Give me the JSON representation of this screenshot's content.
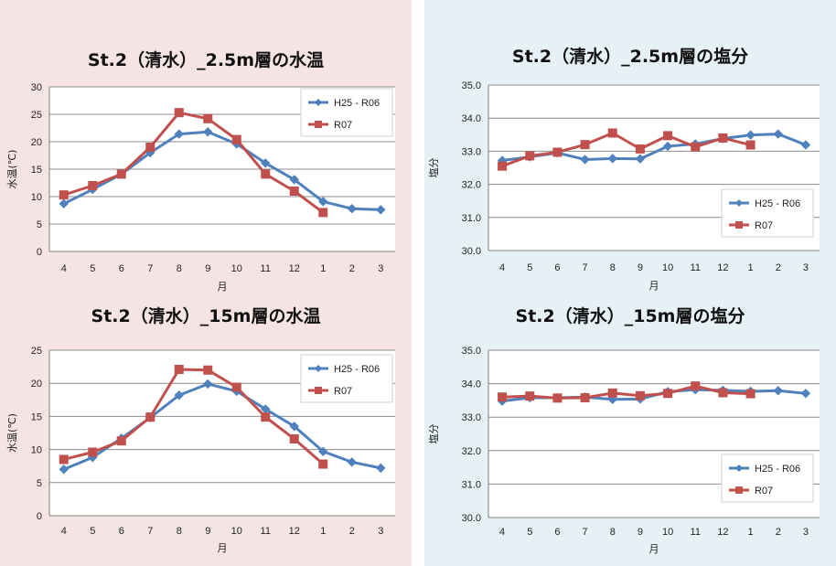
{
  "chart_data": [
    {
      "type": "line",
      "title": "St.2（清水）_2.5m層の水温",
      "xlabel": "月",
      "ylabel": "水温(℃)",
      "categories": [
        "4",
        "5",
        "6",
        "7",
        "8",
        "9",
        "10",
        "11",
        "12",
        "1",
        "2",
        "3"
      ],
      "ylim": [
        0,
        30
      ],
      "yticks": [
        "0",
        "5",
        "10",
        "15",
        "20",
        "25",
        "30"
      ],
      "grid": true,
      "legend": "top-right",
      "series": [
        {
          "name": "H25 - R06",
          "color": "#4f81bd",
          "marker": "diamond",
          "values": [
            8.7,
            11.3,
            14.1,
            18.0,
            21.4,
            21.8,
            19.6,
            16.1,
            13.1,
            9.1,
            7.8,
            7.6
          ]
        },
        {
          "name": "R07",
          "color": "#c0504d",
          "marker": "square",
          "values": [
            10.3,
            12.0,
            14.1,
            19.0,
            25.3,
            24.2,
            20.4,
            14.1,
            11.0,
            7.1,
            null,
            null
          ]
        }
      ]
    },
    {
      "type": "line",
      "title": "St.2（清水）_2.5m層の塩分",
      "xlabel": "月",
      "ylabel": "塩分",
      "categories": [
        "4",
        "5",
        "6",
        "7",
        "8",
        "9",
        "10",
        "11",
        "12",
        "1",
        "2",
        "3"
      ],
      "ylim": [
        30,
        35
      ],
      "yticks": [
        "30.0",
        "31.0",
        "32.0",
        "33.0",
        "34.0",
        "35.0"
      ],
      "grid": true,
      "legend": "bottom-right",
      "series": [
        {
          "name": "H25 - R06",
          "color": "#4f81bd",
          "marker": "diamond",
          "values": [
            32.72,
            32.83,
            32.95,
            32.75,
            32.78,
            32.77,
            33.15,
            33.22,
            33.38,
            33.49,
            33.52,
            33.19
          ]
        },
        {
          "name": "R07",
          "color": "#c0504d",
          "marker": "square",
          "values": [
            32.55,
            32.86,
            32.97,
            33.2,
            33.55,
            33.07,
            33.47,
            33.13,
            33.4,
            33.19,
            null,
            null
          ]
        }
      ]
    },
    {
      "type": "line",
      "title": "St.2（清水）_15m層の水温",
      "xlabel": "月",
      "ylabel": "水温(℃)",
      "categories": [
        "4",
        "5",
        "6",
        "7",
        "8",
        "9",
        "10",
        "11",
        "12",
        "1",
        "2",
        "3"
      ],
      "ylim": [
        0,
        25
      ],
      "yticks": [
        "0",
        "5",
        "10",
        "15",
        "20",
        "25"
      ],
      "grid": true,
      "legend": "top-right",
      "series": [
        {
          "name": "H25 - R06",
          "color": "#4f81bd",
          "marker": "diamond",
          "values": [
            7.0,
            8.8,
            11.7,
            14.8,
            18.2,
            19.9,
            18.8,
            16.1,
            13.5,
            9.7,
            8.1,
            7.2
          ]
        },
        {
          "name": "R07",
          "color": "#c0504d",
          "marker": "square",
          "values": [
            8.5,
            9.6,
            11.3,
            14.9,
            22.1,
            22.0,
            19.4,
            14.9,
            11.6,
            7.8,
            null,
            null
          ]
        }
      ]
    },
    {
      "type": "line",
      "title": "St.2（清水）_15m層の塩分",
      "xlabel": "月",
      "ylabel": "塩分",
      "categories": [
        "4",
        "5",
        "6",
        "7",
        "8",
        "9",
        "10",
        "11",
        "12",
        "1",
        "2",
        "3"
      ],
      "ylim": [
        30,
        35
      ],
      "yticks": [
        "30.0",
        "31.0",
        "32.0",
        "33.0",
        "34.0",
        "35.0"
      ],
      "grid": true,
      "legend": "bottom-right",
      "series": [
        {
          "name": "H25 - R06",
          "color": "#4f81bd",
          "marker": "diamond",
          "values": [
            33.48,
            33.58,
            33.58,
            33.6,
            33.53,
            33.54,
            33.76,
            33.82,
            33.8,
            33.77,
            33.79,
            33.71
          ]
        },
        {
          "name": "R07",
          "color": "#c0504d",
          "marker": "square",
          "values": [
            33.6,
            33.63,
            33.57,
            33.58,
            33.72,
            33.64,
            33.71,
            33.93,
            33.73,
            33.7,
            null,
            null
          ]
        }
      ]
    }
  ]
}
